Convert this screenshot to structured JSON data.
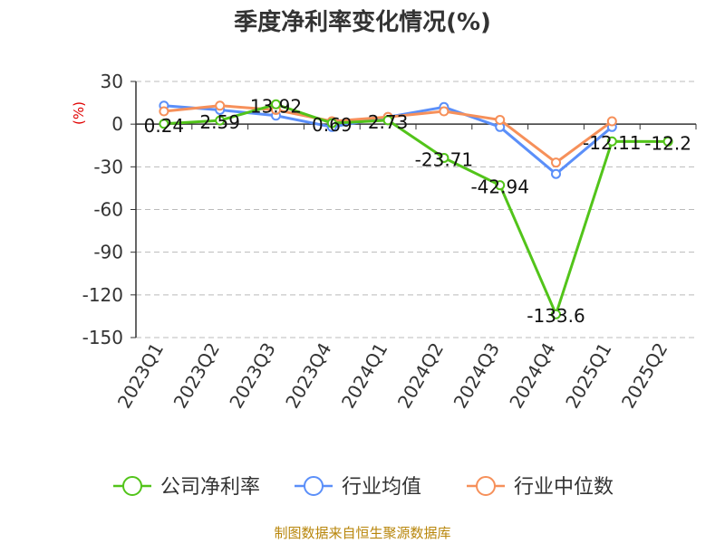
{
  "chart_data": {
    "type": "line",
    "title": "季度净利率变化情况(%)",
    "ylabel": "(%)",
    "categories": [
      "2023Q1",
      "2023Q2",
      "2023Q3",
      "2023Q4",
      "2024Q1",
      "2024Q2",
      "2024Q3",
      "2024Q4",
      "2025Q1",
      "2025Q2"
    ],
    "ylim": [
      -150,
      30
    ],
    "yticks": [
      30,
      0,
      -30,
      -60,
      -90,
      -120,
      -150
    ],
    "grid": true,
    "legend_position": "bottom",
    "series": [
      {
        "name": "公司净利率",
        "color": "#52c41a",
        "values": [
          0.24,
          2.59,
          13.92,
          0.69,
          2.73,
          -23.71,
          -42.94,
          -133.6,
          -12.11,
          -12.2
        ],
        "labels": [
          "0.24",
          "2.59",
          "13.92",
          "0.69",
          "2.73",
          "-23.71",
          "-42.94",
          "-133.6",
          "-12.11",
          "-12.2"
        ]
      },
      {
        "name": "行业均值",
        "color": "#5b8ff9",
        "values": [
          13,
          10,
          6,
          -2,
          5,
          12,
          -2,
          -35,
          -2,
          null
        ]
      },
      {
        "name": "行业中位数",
        "color": "#f6905a",
        "values": [
          9,
          13,
          10,
          2,
          5,
          9,
          3,
          -27,
          2,
          null
        ]
      }
    ]
  },
  "source": "制图数据来自恒生聚源数据库"
}
